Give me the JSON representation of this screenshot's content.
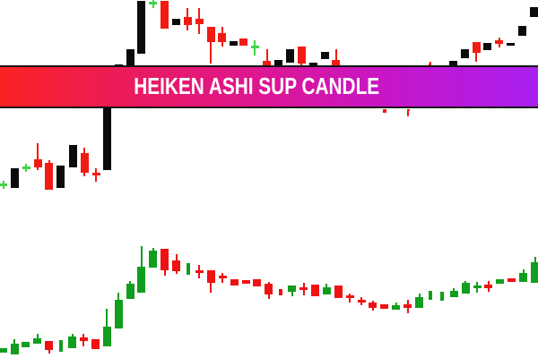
{
  "banner": {
    "title": "HEIKEN ASHI SUP CANDLE",
    "text_color": "#ffffff",
    "border_color": "#141414",
    "gradient": [
      "#fb2222",
      "#e81a66",
      "#dd1691",
      "#c716c8",
      "#a81fef"
    ]
  },
  "chart_data": [
    {
      "type": "candlestick",
      "name": "price-candles-top",
      "coords": "pixels",
      "candle_width": 9,
      "wick_width": 2,
      "colors": {
        "k": "#0b0b0b",
        "r": "#f21b13",
        "g": "#3fd549"
      },
      "candles": [
        [
          3.5,
          204.5,
          207.5,
          "g",
          201.5,
          210.5,
          null
        ],
        [
          16.3,
          188,
          210,
          "k",
          null,
          null,
          null
        ],
        [
          29.2,
          186,
          189,
          "g",
          183,
          192,
          null
        ],
        [
          42,
          178,
          187,
          "r",
          160,
          190,
          null
        ],
        [
          54.9,
          182,
          211.5,
          "r",
          179,
          null,
          null
        ],
        [
          67.8,
          185,
          210,
          "k",
          null,
          null,
          null
        ],
        [
          81,
          161.5,
          187,
          "k",
          null,
          null,
          null
        ],
        [
          94,
          170.5,
          192.5,
          "r",
          165,
          197,
          null
        ],
        [
          107,
          192.5,
          195.5,
          "r",
          188,
          203,
          null
        ],
        [
          119.9,
          119,
          189.5,
          "k",
          null,
          null,
          null
        ],
        [
          132.8,
          71.5,
          95,
          "k",
          null,
          null,
          null
        ],
        [
          145.6,
          55,
          95,
          "k",
          null,
          null,
          null
        ],
        [
          157.8,
          1,
          59.5,
          "k",
          null,
          null,
          null
        ],
        [
          170.7,
          2,
          5,
          "g",
          0,
          8.5,
          null
        ],
        [
          183.5,
          1,
          32,
          "r",
          null,
          null,
          null
        ],
        [
          196.4,
          20.5,
          28,
          "k",
          null,
          null,
          null
        ],
        [
          209.2,
          18.5,
          27.5,
          "r",
          8.5,
          33.5,
          null
        ],
        [
          222.1,
          21,
          27,
          "r",
          8.5,
          37.5,
          null
        ],
        [
          235,
          29.5,
          46.5,
          "r",
          null,
          71,
          null
        ],
        [
          247.8,
          36.5,
          46.5,
          "r",
          29.5,
          51.5,
          null
        ],
        [
          260.2,
          46,
          50.5,
          "k",
          null,
          null,
          null
        ],
        [
          271.2,
          42.5,
          50.5,
          "r",
          null,
          null,
          null
        ],
        [
          284.3,
          50.5,
          53.5,
          "g",
          44.5,
          61.5,
          null
        ],
        [
          297.9,
          68,
          74,
          "r",
          55,
          null,
          null
        ],
        [
          310.7,
          67,
          74,
          "k",
          null,
          null,
          null
        ],
        [
          323.5,
          55,
          70,
          "k",
          null,
          null,
          null
        ],
        [
          336.4,
          52,
          71,
          "r",
          null,
          74,
          null
        ],
        [
          349.2,
          69.5,
          74,
          "k",
          null,
          null,
          null
        ],
        [
          362.1,
          58,
          66,
          "k",
          null,
          null,
          null
        ],
        [
          374.9,
          67,
          74,
          "r",
          55,
          null,
          null
        ],
        [
          429.2,
          122,
          125.5,
          "r",
          null,
          null,
          4
        ],
        [
          455,
          121.5,
          124,
          "r",
          null,
          130,
          3
        ],
        [
          479.7,
          71,
          74,
          "r",
          69,
          null,
          3
        ],
        [
          505.4,
          67.5,
          74,
          "k",
          null,
          null,
          null
        ],
        [
          518.2,
          55,
          65,
          "k",
          null,
          null,
          null
        ],
        [
          531.1,
          46.5,
          58.5,
          "r",
          null,
          68.5,
          null
        ],
        [
          543.9,
          47.5,
          56,
          "k",
          null,
          null,
          null
        ],
        [
          556.8,
          44.5,
          48.5,
          "r",
          41.5,
          53,
          null
        ],
        [
          569.6,
          47.5,
          50.5,
          "k",
          null,
          null,
          null
        ],
        [
          582.5,
          28.5,
          40,
          "k",
          null,
          null,
          null
        ],
        [
          595.3,
          7.5,
          19,
          "k",
          null,
          null,
          null
        ]
      ]
    },
    {
      "type": "candlestick",
      "name": "heiken-ashi-candles-bottom",
      "coords": "pixels",
      "candle_width": 9,
      "wick_width": 2,
      "colors": {
        "r": "#ef1212",
        "g": "#119d1d"
      },
      "candles": [
        [
          3.1,
          389,
          394,
          "g",
          null,
          null,
          null
        ],
        [
          16,
          384,
          396,
          "g",
          379,
          null,
          null
        ],
        [
          28.9,
          381.5,
          387.5,
          "g",
          null,
          null,
          null
        ],
        [
          41.8,
          377.5,
          383.5,
          "g",
          372.5,
          null,
          null
        ],
        [
          54.7,
          380.5,
          391,
          "r",
          null,
          395,
          null
        ],
        [
          67.6,
          380,
          393,
          "g",
          null,
          null,
          4
        ],
        [
          80.5,
          376,
          388.5,
          "g",
          373,
          null,
          null
        ],
        [
          93.4,
          377,
          380.5,
          "r",
          373,
          387,
          null
        ],
        [
          106.3,
          379,
          389.5,
          "r",
          null,
          null,
          null
        ],
        [
          119.2,
          364.5,
          387,
          "g",
          344.5,
          null,
          null
        ],
        [
          132.1,
          334.5,
          367,
          "g",
          327,
          null,
          null
        ],
        [
          145,
          316.5,
          333.5,
          "g",
          314,
          null,
          null
        ],
        [
          157.9,
          297.5,
          327,
          "g",
          275,
          null,
          null
        ],
        [
          170.8,
          280,
          298.5,
          "g",
          277,
          null,
          null
        ],
        [
          183.7,
          277.5,
          302,
          "r",
          null,
          308,
          null
        ],
        [
          196.6,
          291,
          303,
          "r",
          283.5,
          306,
          null
        ],
        [
          209.5,
          294,
          306.5,
          "g",
          null,
          null,
          4
        ],
        [
          222.4,
          301.5,
          305,
          "r",
          296,
          310.5,
          null
        ],
        [
          235.3,
          302,
          315.5,
          "r",
          null,
          326.5,
          null
        ],
        [
          248.2,
          307.5,
          311,
          "r",
          304.5,
          315.5,
          null
        ],
        [
          261.1,
          312,
          318.5,
          "r",
          null,
          null,
          null
        ],
        [
          274,
          313,
          316.5,
          "r",
          null,
          null,
          null
        ],
        [
          286.9,
          312,
          319.5,
          "r",
          null,
          null,
          null
        ],
        [
          299.8,
          317,
          329,
          "r",
          314.5,
          334,
          null
        ],
        [
          312.7,
          322.5,
          330,
          "r",
          null,
          null,
          4
        ],
        [
          325.6,
          319,
          326,
          "g",
          null,
          331,
          null
        ],
        [
          338.5,
          320.5,
          324,
          "r",
          316,
          329.5,
          null
        ],
        [
          351.4,
          318,
          331,
          "r",
          null,
          null,
          null
        ],
        [
          364.3,
          320.5,
          328.5,
          "g",
          316.5,
          null,
          null
        ],
        [
          377.2,
          319,
          333,
          "r",
          null,
          null,
          null
        ],
        [
          390.1,
          329.5,
          333,
          "r",
          327.5,
          337.5,
          null
        ],
        [
          403,
          334.5,
          337.5,
          "r",
          332,
          340.5,
          null
        ],
        [
          415.9,
          338,
          344,
          "r",
          335.5,
          346.5,
          null
        ],
        [
          428.8,
          339.5,
          344.5,
          "r",
          null,
          null,
          null
        ],
        [
          441.7,
          341,
          345.5,
          "g",
          337.5,
          null,
          null
        ],
        [
          454.6,
          340,
          343.5,
          "r",
          335,
          349.5,
          null
        ],
        [
          467.5,
          331.5,
          344,
          "g",
          328,
          null,
          null
        ],
        [
          480.4,
          324.5,
          334.5,
          "g",
          null,
          null,
          4
        ],
        [
          493.3,
          325.5,
          335.5,
          "g",
          null,
          null,
          4
        ],
        [
          506.2,
          324.5,
          331.5,
          "g",
          322,
          null,
          null
        ],
        [
          519.1,
          316,
          328,
          "g",
          313.5,
          null,
          null
        ],
        [
          532,
          319,
          322,
          "g",
          314.5,
          327,
          null
        ],
        [
          544.9,
          318,
          321.5,
          "r",
          313.5,
          326,
          null
        ],
        [
          557.8,
          312,
          316.5,
          "g",
          null,
          null,
          null
        ],
        [
          570.7,
          311,
          314.5,
          "r",
          null,
          null,
          null
        ],
        [
          583.6,
          304.5,
          315,
          "g",
          301,
          null,
          null
        ],
        [
          596.5,
          292.5,
          315.5,
          "g",
          287,
          null,
          null
        ]
      ]
    }
  ]
}
